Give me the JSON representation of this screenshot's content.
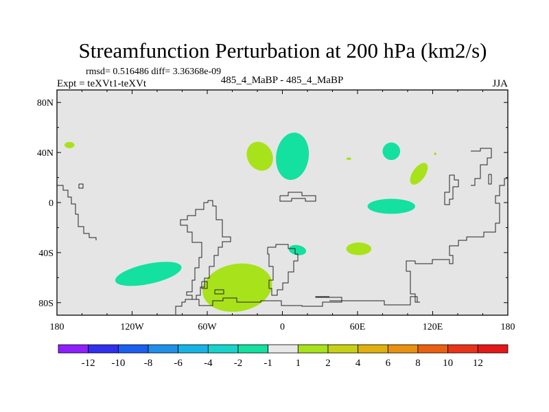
{
  "chart_data": {
    "type": "heatmap",
    "title": "Streamfunction Perturbation at 200 hPa (km2/s)",
    "stats_text": "rmsd= 0.516486 diff= 3.36368e-09",
    "left_label": "Expt = teXVt1-teXVt",
    "center_label": "485_4_MaBP - 485_4_MaBP",
    "right_label": "JJA",
    "x_axis": {
      "range": [
        -180,
        180
      ],
      "ticks": [
        {
          "value": -180,
          "label": "180"
        },
        {
          "value": -120,
          "label": "120W"
        },
        {
          "value": -60,
          "label": "60W"
        },
        {
          "value": 0,
          "label": "0"
        },
        {
          "value": 60,
          "label": "60E"
        },
        {
          "value": 120,
          "label": "120E"
        },
        {
          "value": 180,
          "label": "180"
        }
      ]
    },
    "y_axis": {
      "range": [
        -90,
        90
      ],
      "ticks": [
        {
          "value": 80,
          "label": "80N"
        },
        {
          "value": 40,
          "label": "40N"
        },
        {
          "value": 0,
          "label": "0"
        },
        {
          "value": -40,
          "label": "40S"
        },
        {
          "value": -80,
          "label": "80S"
        }
      ]
    },
    "background_color": "#e5e5e5",
    "colorbar": {
      "labels": [
        "-12",
        "-10",
        "-8",
        "-6",
        "-4",
        "-2",
        "-1",
        "1",
        "2",
        "4",
        "6",
        "8",
        "10",
        "12"
      ],
      "colors": [
        "#8f1fff",
        "#3030f0",
        "#1a5ff0",
        "#1f8fe8",
        "#16b4e6",
        "#16d4cc",
        "#14e0a0",
        "#e8e8e8",
        "#a8e21a",
        "#c8d016",
        "#e0b010",
        "#e89010",
        "#e86010",
        "#e83418",
        "#e41818"
      ]
    },
    "contours": [
      {
        "region": "arctic-pacific-small",
        "color": "#a8e21a",
        "cx": -170,
        "cy": 46,
        "rx": 4,
        "ry": 2.5,
        "rot": 0
      },
      {
        "region": "north-atlantic",
        "color": "#a8e21a",
        "cx": -18,
        "cy": 37,
        "rx": 10,
        "ry": 12,
        "rot": -30
      },
      {
        "region": "europe",
        "color": "#14e0a0",
        "cx": 8,
        "cy": 37,
        "rx": 13,
        "ry": 19,
        "rot": 8
      },
      {
        "region": "central-asia-dot",
        "color": "#a8e21a",
        "cx": 53,
        "cy": 35,
        "rx": 2,
        "ry": 1,
        "rot": 0
      },
      {
        "region": "east-asia",
        "color": "#14e0a0",
        "cx": 87,
        "cy": 41,
        "rx": 7,
        "ry": 7,
        "rot": 0
      },
      {
        "region": "north-pacific-west",
        "color": "#a8e21a",
        "cx": 109,
        "cy": 23,
        "rx": 5,
        "ry": 10,
        "rot": 35
      },
      {
        "region": "north-pacific-dot",
        "color": "#a8e21a",
        "cx": 122,
        "cy": 39,
        "rx": 1,
        "ry": 1,
        "rot": 0
      },
      {
        "region": "indian-ocean",
        "color": "#14e0a0",
        "cx": 87,
        "cy": -3,
        "rx": 19,
        "ry": 6,
        "rot": 0
      },
      {
        "region": "south-indian",
        "color": "#a8e21a",
        "cx": 61,
        "cy": -37,
        "rx": 10,
        "ry": 5,
        "rot": 0
      },
      {
        "region": "south-africa",
        "color": "#14e0a0",
        "cx": 12,
        "cy": -38,
        "rx": 7,
        "ry": 4,
        "rot": 10
      },
      {
        "region": "south-pacific",
        "color": "#14e0a0",
        "cx": -107,
        "cy": -57,
        "rx": 27,
        "ry": 8,
        "rot": -12
      },
      {
        "region": "south-atlantic",
        "color": "#a8e21a",
        "cx": -36,
        "cy": -68,
        "rx": 28,
        "ry": 19,
        "rot": -10
      }
    ]
  },
  "colorbar_label_prefix": "value"
}
